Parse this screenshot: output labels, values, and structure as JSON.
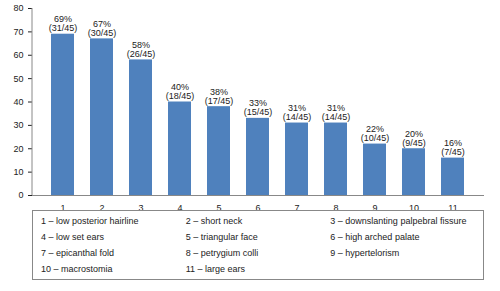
{
  "chart_data": {
    "type": "bar",
    "categories": [
      "1",
      "2",
      "3",
      "4",
      "5",
      "6",
      "7",
      "8",
      "9",
      "10",
      "11"
    ],
    "values": [
      69,
      67,
      58,
      40,
      38,
      33,
      31,
      31,
      22,
      20,
      16
    ],
    "value_labels": [
      "69%\n(31/45)",
      "67%\n(30/45)",
      "58%\n(26/45)",
      "40%\n(18/45)",
      "38%\n(17/45)",
      "33%\n(15/45)",
      "31%\n(14/45)",
      "31%\n(14/45)",
      "22%\n(10/45)",
      "20%\n(9/45)",
      "16%\n(7/45)"
    ],
    "data_labels": true,
    "color": "#4f81bd",
    "ylim": [
      0,
      80
    ],
    "yticks": [
      0,
      10,
      20,
      30,
      40,
      50,
      60,
      70,
      80
    ],
    "grid": false,
    "annotations": [
      "1 – low posterior hairline",
      "2 – short neck",
      "3 – downslanting palpebral fissure",
      "4 – low set ears",
      "5 – triangular face",
      "6 – high arched palate",
      "7 – epicanthal fold",
      "8 – petrygium colli",
      "9 – hypertelorism",
      "10 – macrostomia",
      "11 – large ears"
    ]
  }
}
